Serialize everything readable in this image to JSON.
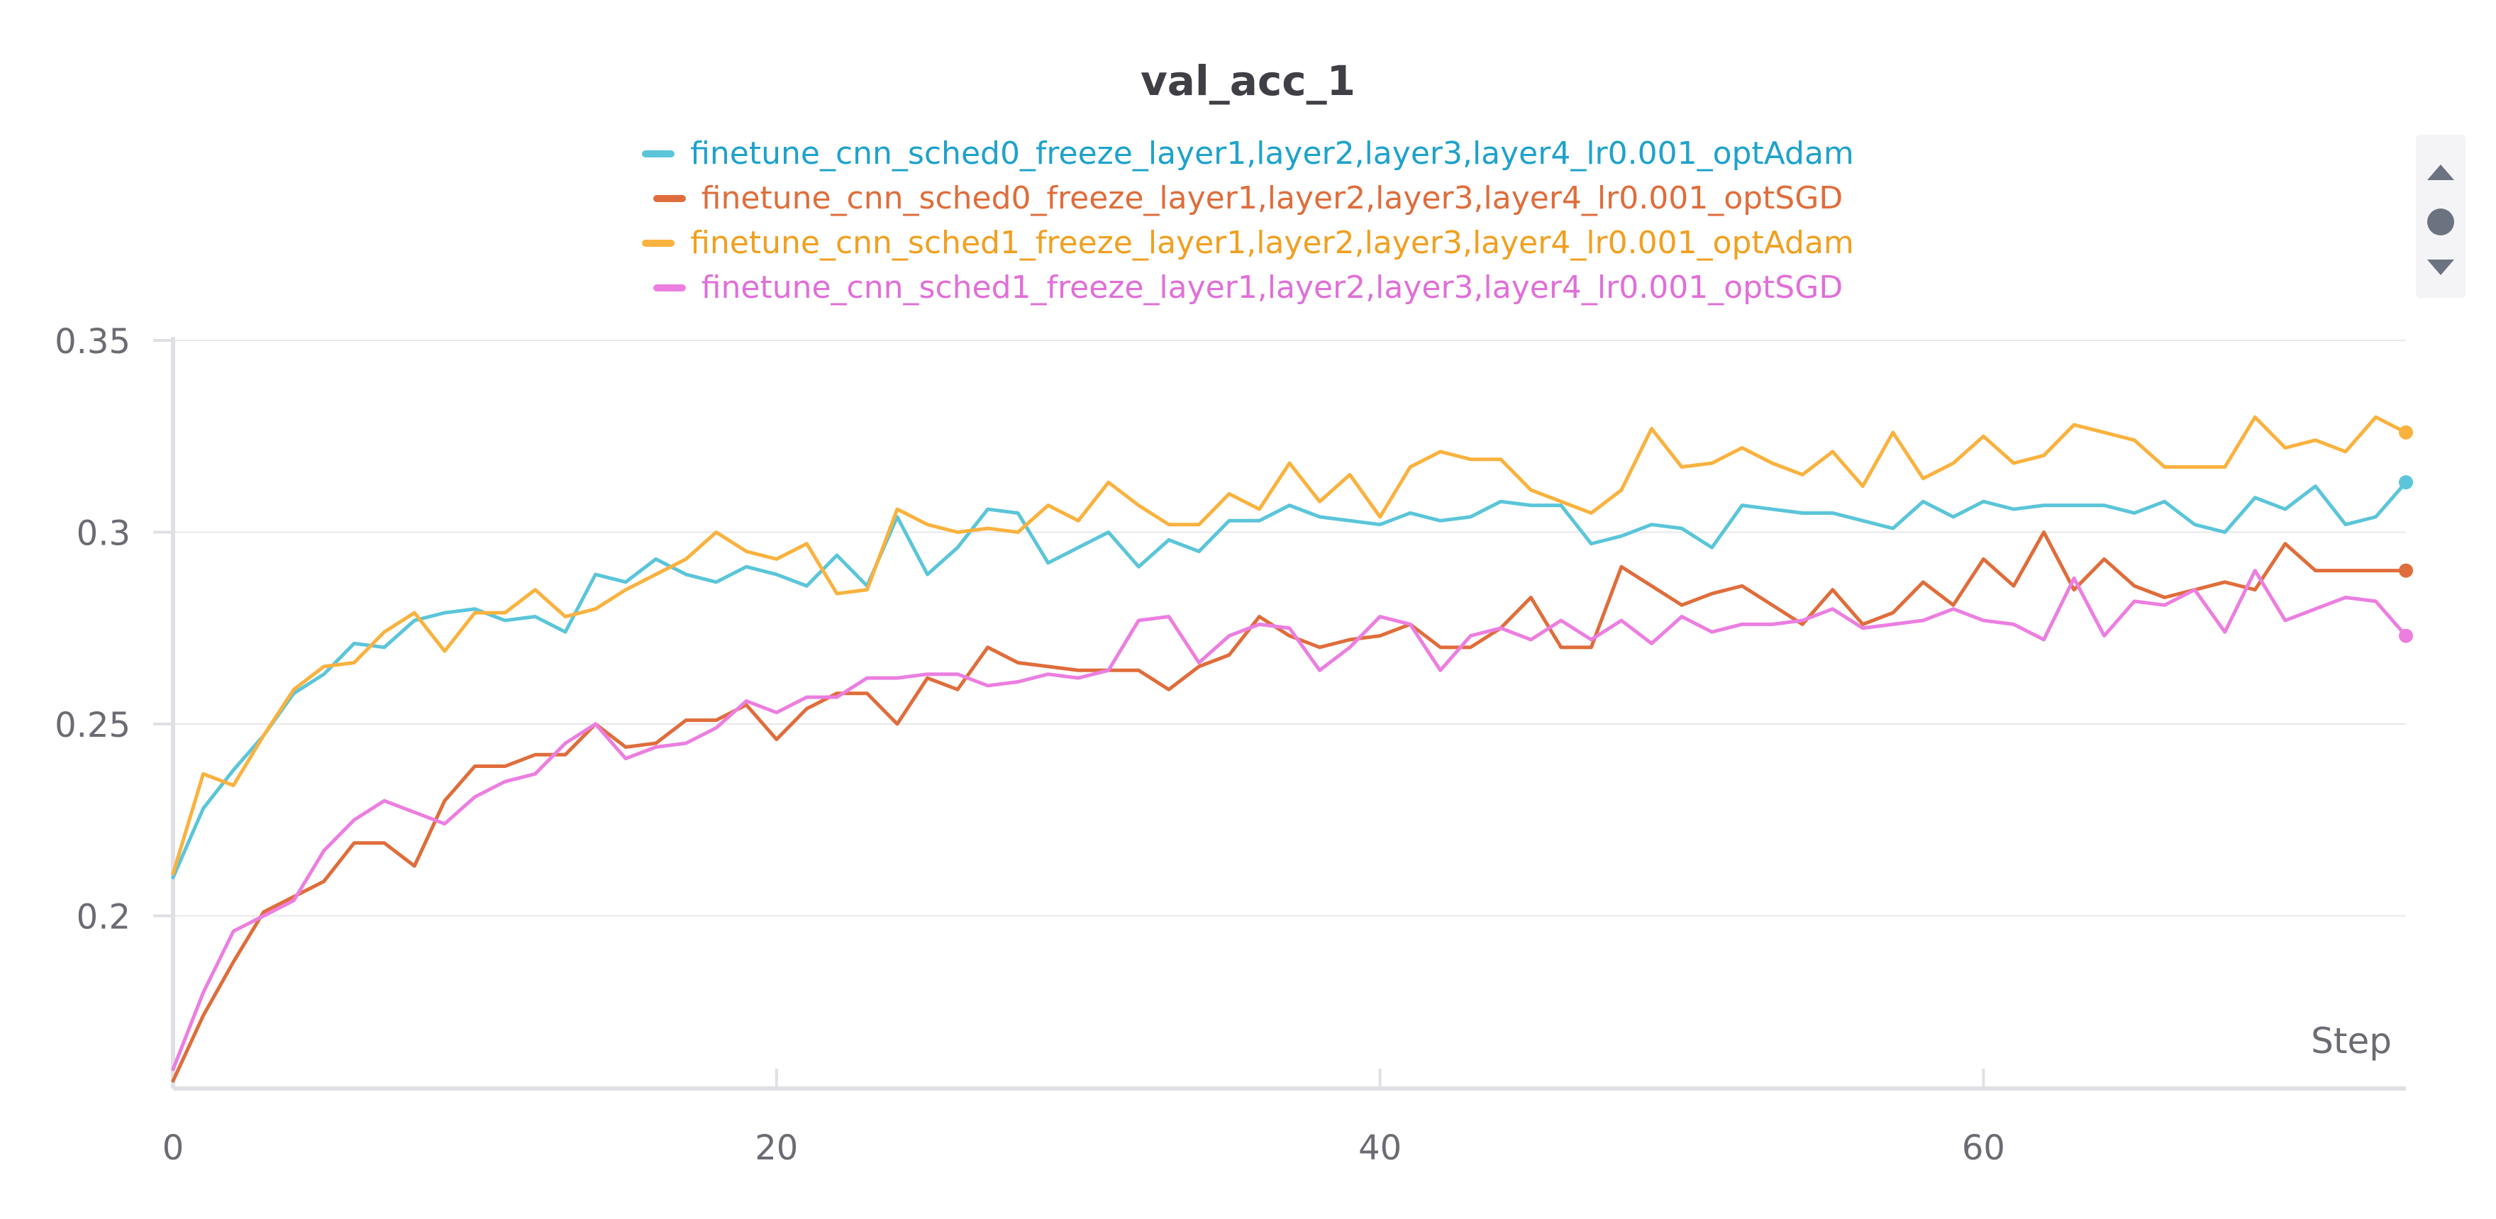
{
  "chart_data": {
    "type": "line",
    "title": "val_acc_1",
    "xlabel": "Step",
    "ylabel": "",
    "xlim": [
      0,
      74
    ],
    "ylim": [
      0.155,
      0.35
    ],
    "x_ticks": [
      0,
      20,
      40,
      60
    ],
    "y_ticks": [
      0.2,
      0.25,
      0.3,
      0.35
    ],
    "x_tick_labels": [
      "0",
      "20",
      "40",
      "60"
    ],
    "y_tick_labels": [
      "0.2",
      "0.25",
      "0.3",
      "0.35"
    ],
    "grid": true,
    "legend_position": "top-center",
    "series": [
      {
        "name": "finetune_cnn_sched0_freeze_layer1,layer2,layer3,layer4_lr0.001_optAdam",
        "color": "#5bc5d9",
        "label_color": "#1ea2cc",
        "values": [
          0.21,
          0.228,
          0.238,
          0.247,
          0.258,
          0.263,
          0.271,
          0.27,
          0.277,
          0.279,
          0.28,
          0.277,
          0.278,
          0.274,
          0.289,
          0.287,
          0.293,
          0.289,
          0.287,
          0.291,
          0.289,
          0.286,
          0.294,
          0.286,
          0.304,
          0.289,
          0.296,
          0.306,
          0.305,
          0.292,
          0.296,
          0.3,
          0.291,
          0.298,
          0.295,
          0.303,
          0.303,
          0.307,
          0.304,
          0.303,
          0.302,
          0.305,
          0.303,
          0.304,
          0.308,
          0.307,
          0.307,
          0.297,
          0.299,
          0.302,
          0.301,
          0.296,
          0.307,
          0.306,
          0.305,
          0.305,
          0.303,
          0.301,
          0.308,
          0.304,
          0.308,
          0.306,
          0.307,
          0.307,
          0.307,
          0.305,
          0.308,
          0.302,
          0.3,
          0.309,
          0.306,
          0.312,
          0.302,
          0.304,
          0.313
        ]
      },
      {
        "name": "finetune_cnn_sched0_freeze_layer1,layer2,layer3,layer4_lr0.001_optSGD",
        "color": "#df6d3b",
        "label_color": "#df6d3b",
        "values": [
          0.157,
          0.174,
          0.188,
          0.201,
          0.205,
          0.209,
          0.219,
          0.219,
          0.213,
          0.23,
          0.239,
          0.239,
          0.242,
          0.242,
          0.25,
          0.244,
          0.245,
          0.251,
          0.251,
          0.255,
          0.246,
          0.254,
          0.258,
          0.258,
          0.25,
          0.262,
          0.259,
          0.27,
          0.266,
          0.265,
          0.264,
          0.264,
          0.264,
          0.259,
          0.265,
          0.268,
          0.278,
          0.273,
          0.27,
          0.272,
          0.273,
          0.276,
          0.27,
          0.27,
          0.275,
          0.283,
          0.27,
          0.27,
          0.291,
          0.286,
          0.281,
          0.284,
          0.286,
          0.281,
          0.276,
          0.285,
          0.276,
          0.279,
          0.287,
          0.281,
          0.293,
          0.286,
          0.3,
          0.285,
          0.293,
          0.286,
          0.283,
          0.285,
          0.287,
          0.285,
          0.297,
          0.29,
          0.29,
          0.29,
          0.29
        ]
      },
      {
        "name": "finetune_cnn_sched1_freeze_layer1,layer2,layer3,layer4_lr0.001_optAdam",
        "color": "#f9b23e",
        "label_color": "#f0a020",
        "values": [
          0.211,
          0.237,
          0.234,
          0.247,
          0.259,
          0.265,
          0.266,
          0.274,
          0.279,
          0.269,
          0.279,
          0.279,
          0.285,
          0.278,
          0.28,
          0.285,
          0.289,
          0.293,
          0.3,
          0.295,
          0.293,
          0.297,
          0.284,
          0.285,
          0.306,
          0.302,
          0.3,
          0.301,
          0.3,
          0.307,
          0.303,
          0.313,
          0.307,
          0.302,
          0.302,
          0.31,
          0.306,
          0.318,
          0.308,
          0.315,
          0.304,
          0.317,
          0.321,
          0.319,
          0.319,
          0.311,
          0.308,
          0.305,
          0.311,
          0.327,
          0.317,
          0.318,
          0.322,
          0.318,
          0.315,
          0.321,
          0.312,
          0.326,
          0.314,
          0.318,
          0.325,
          0.318,
          0.32,
          0.328,
          0.326,
          0.324,
          0.317,
          0.317,
          0.317,
          0.33,
          0.322,
          0.324,
          0.321,
          0.33,
          0.326
        ]
      },
      {
        "name": "finetune_cnn_sched1_freeze_layer1,layer2,layer3,layer4_lr0.001_optSGD",
        "color": "#ec7ee0",
        "label_color": "#e06fd8",
        "values": [
          0.16,
          0.18,
          0.196,
          0.2,
          0.204,
          0.217,
          0.225,
          0.23,
          0.227,
          0.224,
          0.231,
          0.235,
          0.237,
          0.245,
          0.25,
          0.241,
          0.244,
          0.245,
          0.249,
          0.256,
          0.253,
          0.257,
          0.257,
          0.262,
          0.262,
          0.263,
          0.263,
          0.26,
          0.261,
          0.263,
          0.262,
          0.264,
          0.277,
          0.278,
          0.266,
          0.273,
          0.276,
          0.275,
          0.264,
          0.27,
          0.278,
          0.276,
          0.264,
          0.273,
          0.275,
          0.272,
          0.277,
          0.272,
          0.277,
          0.271,
          0.278,
          0.274,
          0.276,
          0.276,
          0.277,
          0.28,
          0.275,
          0.276,
          0.277,
          0.28,
          0.277,
          0.276,
          0.272,
          0.288,
          0.273,
          0.282,
          0.281,
          0.285,
          0.274,
          0.29,
          0.277,
          0.28,
          0.283,
          0.282,
          0.273
        ]
      }
    ]
  },
  "ui": {
    "scroll_icons": [
      "triangle-up-icon",
      "circle-icon",
      "triangle-down-icon"
    ]
  }
}
